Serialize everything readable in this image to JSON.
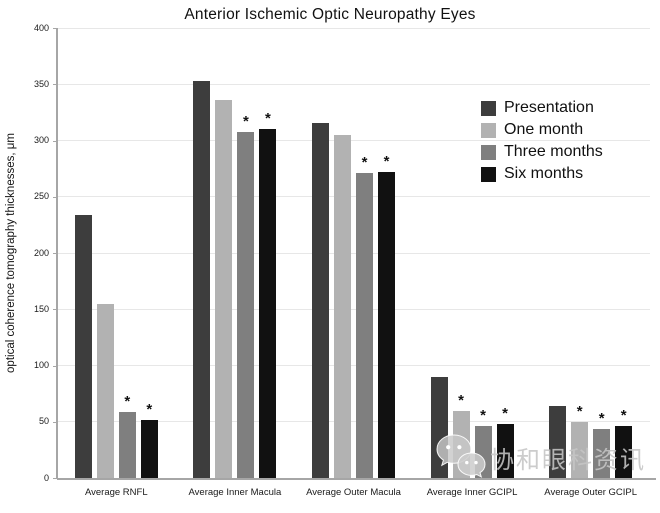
{
  "title": "Anterior Ischemic Optic Neuropathy Eyes",
  "chart_data": {
    "type": "bar",
    "title": "Anterior Ischemic Optic Neuropathy Eyes",
    "xlabel": "",
    "ylabel": "optical coherence tomography thicknesses, μm",
    "ylim": [
      0,
      400
    ],
    "yticks": [
      0,
      50,
      100,
      150,
      200,
      250,
      300,
      350,
      400
    ],
    "grid": true,
    "legend_position": "upper right",
    "significance_marker": "*",
    "categories": [
      "Average RNFL",
      "Average Inner Macula",
      "Average Outer Macula",
      "Average Inner GCIPL",
      "Average Outer GCIPL"
    ],
    "series": [
      {
        "name": "Presentation",
        "color": "#3d3d3d",
        "values": [
          234,
          353,
          316,
          90,
          64
        ],
        "significant": [
          false,
          false,
          false,
          false,
          false
        ]
      },
      {
        "name": "One month",
        "color": "#b2b2b2",
        "values": [
          155,
          336,
          305,
          60,
          50
        ],
        "significant": [
          false,
          false,
          false,
          true,
          true
        ]
      },
      {
        "name": "Three months",
        "color": "#7f7f7f",
        "values": [
          59,
          308,
          271,
          46,
          44
        ],
        "significant": [
          true,
          true,
          true,
          true,
          true
        ]
      },
      {
        "name": "Six months",
        "color": "#111111",
        "values": [
          52,
          310,
          272,
          48,
          46
        ],
        "significant": [
          true,
          true,
          true,
          true,
          true
        ]
      }
    ]
  },
  "watermark": {
    "text": "协和眼科资讯",
    "icon": "wechat-icon"
  }
}
